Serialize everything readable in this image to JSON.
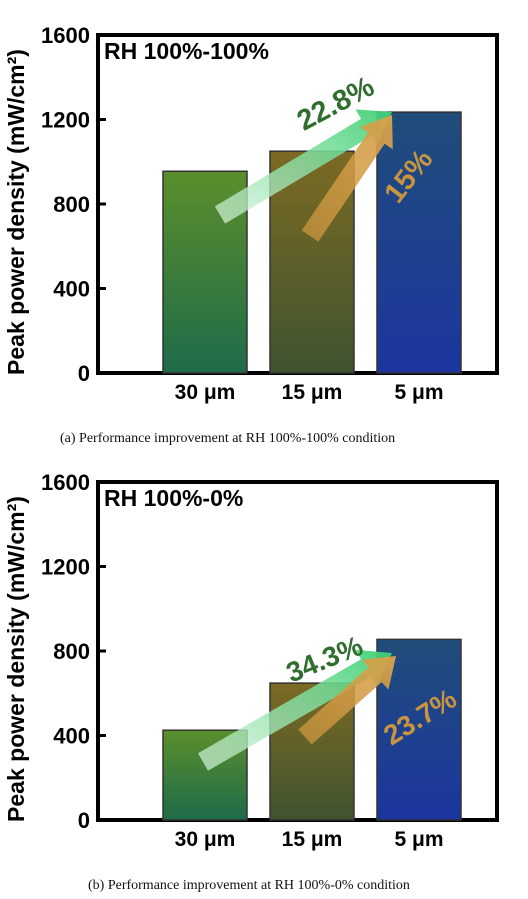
{
  "chart_data": [
    {
      "type": "bar",
      "annotation": "RH 100%-100%",
      "ylabel": "Peak power density (mW/cm²)",
      "ylim": [
        0,
        1600
      ],
      "yticks": [
        "0",
        "400",
        "800",
        "1200",
        "1600"
      ],
      "categories": [
        "30 μm",
        "15 μm",
        "5 μm"
      ],
      "values": [
        955,
        1050,
        1235
      ],
      "improvements": [
        "22.8%",
        "15%"
      ],
      "caption": "(a)  Performance improvement at RH 100%-100% condition",
      "grid": false
    },
    {
      "type": "bar",
      "annotation": "RH 100%-0%",
      "ylabel": "Peak power density (mW/cm²)",
      "ylim": [
        0,
        1600
      ],
      "yticks": [
        "0",
        "400",
        "800",
        "1200",
        "1600"
      ],
      "categories": [
        "30 μm",
        "15 μm",
        "5 μm"
      ],
      "values": [
        425,
        648,
        855
      ],
      "improvements": [
        "34.3%",
        "23.7%"
      ],
      "caption": "(b)  Performance improvement at RH 100%-0% condition",
      "grid": false
    }
  ],
  "colors": {
    "bar_30um": "#3d7a35",
    "bar_15um": "#6b5e28",
    "bar_5um": "#1f3f8a",
    "green_label": "#2f6e2f",
    "orange_label": "#c9943f"
  }
}
